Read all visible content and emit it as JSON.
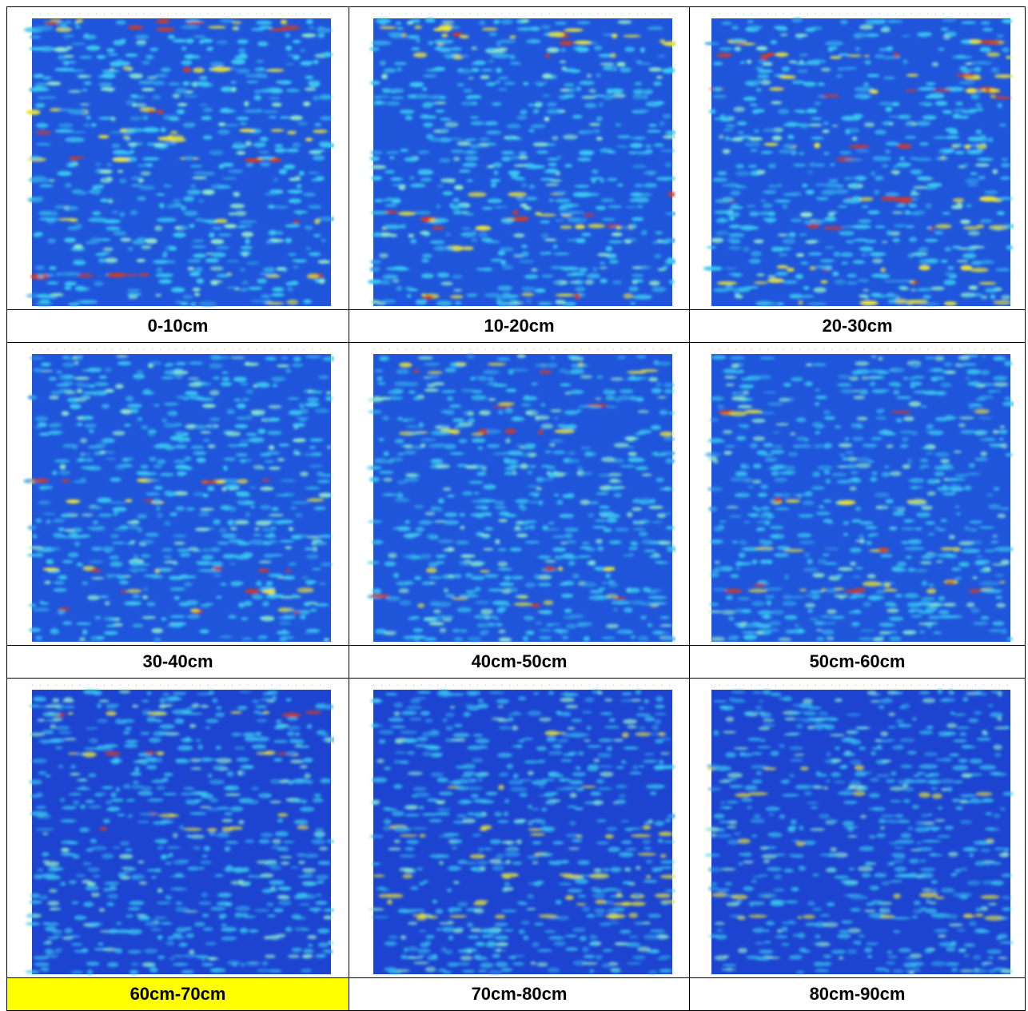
{
  "panels": [
    {
      "label": "0-10cm"
    },
    {
      "label": "10-20cm"
    },
    {
      "label": "20-30cm"
    },
    {
      "label": "30-40cm"
    },
    {
      "label": "40cm-50cm"
    },
    {
      "label": "50cm-60cm"
    },
    {
      "label": "60cm-70cm"
    },
    {
      "label": "70cm-80cm"
    },
    {
      "label": "80cm-90cm"
    }
  ]
}
